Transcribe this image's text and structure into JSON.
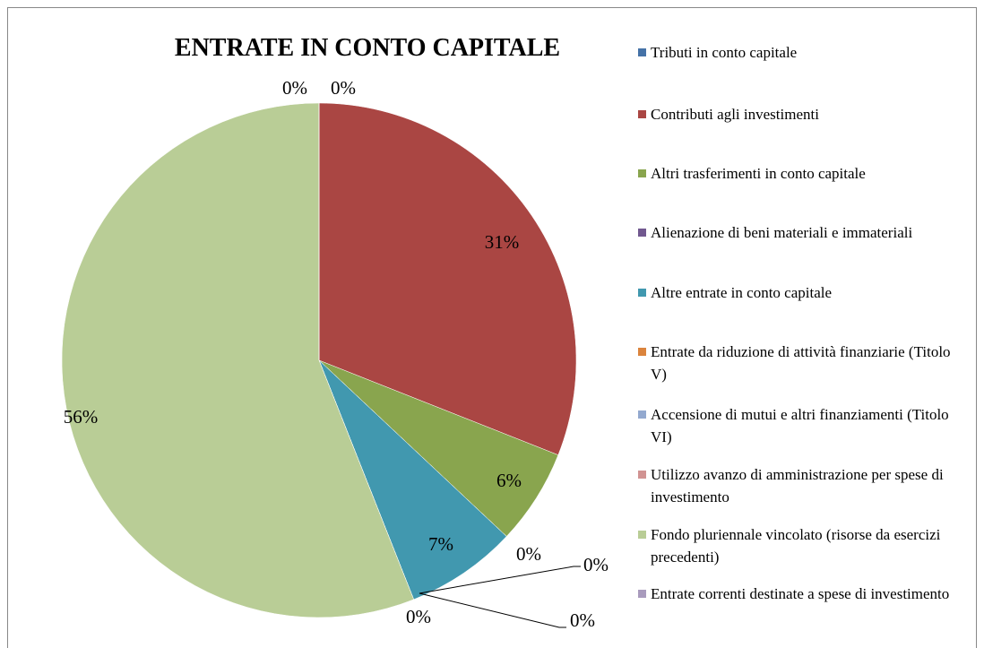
{
  "chart_data": {
    "type": "pie",
    "title": "ENTRATE IN CONTO CAPITALE",
    "categories": [
      "Tributi in conto capitale",
      "Contributi agli investimenti",
      "Altri trasferimenti in conto capitale",
      "Alienazione di beni materiali e immateriali",
      "Altre entrate in conto capitale",
      "Entrate da riduzione di attività finanziarie (Titolo V)",
      "Accensione di mutui e altri finanziamenti (Titolo VI)",
      "Utilizzo avanzo di amministrazione per spese di investimento",
      "Fondo pluriennale vincolato (risorse da esercizi precedenti)",
      "Entrate correnti destinate a spese di investimento"
    ],
    "values": [
      0,
      31,
      6,
      0,
      7,
      0,
      0,
      0,
      56,
      0
    ],
    "value_labels": [
      "0%",
      "31%",
      "6%",
      "0%",
      "7%",
      "0%",
      "0%",
      "0%",
      "56%",
      "0%"
    ],
    "colors": [
      "#4572a7",
      "#aa4643",
      "#89a54e",
      "#71588f",
      "#4198af",
      "#db843d",
      "#93a9cf",
      "#d19392",
      "#b9cd96",
      "#a99bbd"
    ],
    "legend": "right"
  }
}
